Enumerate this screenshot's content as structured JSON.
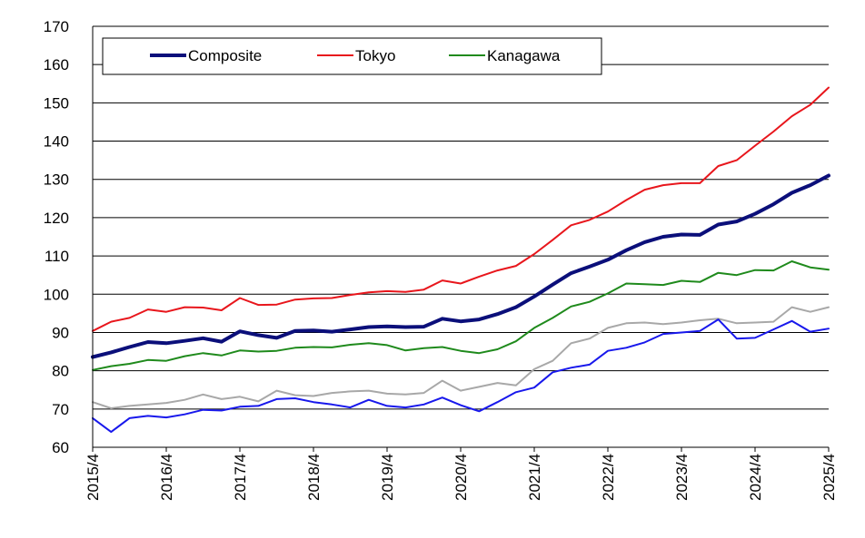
{
  "chart_data": {
    "type": "line",
    "title": "",
    "xlabel": "",
    "ylabel": "",
    "ylim": [
      60,
      170
    ],
    "yticks": [
      60,
      70,
      80,
      90,
      100,
      110,
      120,
      130,
      140,
      150,
      160,
      170
    ],
    "xlim": [
      "2015/4",
      "2025/4"
    ],
    "xtick_labels": [
      "2015/4",
      "2016/4",
      "2017/4",
      "2018/4",
      "2019/4",
      "2020/4",
      "2021/4",
      "2022/4",
      "2023/4",
      "2024/4",
      "2025/4"
    ],
    "grid": "horizontal",
    "legend_position": "top-left",
    "series": [
      {
        "name": "Composite",
        "color": "#0b0f7a",
        "points": [
          [
            "2015/4",
            83.6
          ],
          [
            "2015/7",
            84.8
          ],
          [
            "2015/10",
            86.2
          ],
          [
            "2016/1",
            87.5
          ],
          [
            "2016/4",
            87.2
          ],
          [
            "2016/7",
            87.8
          ],
          [
            "2016/10",
            88.5
          ],
          [
            "2017/1",
            87.6
          ],
          [
            "2017/4",
            90.3
          ],
          [
            "2017/7",
            89.3
          ],
          [
            "2017/10",
            88.6
          ],
          [
            "2018/1",
            90.4
          ],
          [
            "2018/4",
            90.5
          ],
          [
            "2018/7",
            90.2
          ],
          [
            "2018/10",
            90.8
          ],
          [
            "2019/1",
            91.4
          ],
          [
            "2019/4",
            91.6
          ],
          [
            "2019/7",
            91.4
          ],
          [
            "2019/10",
            91.5
          ],
          [
            "2020/1",
            93.6
          ],
          [
            "2020/4",
            92.9
          ],
          [
            "2020/7",
            93.4
          ],
          [
            "2020/10",
            94.8
          ],
          [
            "2021/1",
            96.6
          ],
          [
            "2021/4",
            99.4
          ],
          [
            "2021/7",
            102.5
          ],
          [
            "2021/10",
            105.5
          ],
          [
            "2022/1",
            107.2
          ],
          [
            "2022/4",
            109.0
          ],
          [
            "2022/7",
            111.5
          ],
          [
            "2022/10",
            113.6
          ],
          [
            "2023/1",
            115.0
          ],
          [
            "2023/4",
            115.6
          ],
          [
            "2023/7",
            115.5
          ],
          [
            "2023/10",
            118.2
          ],
          [
            "2024/1",
            119.0
          ],
          [
            "2024/4",
            121.0
          ],
          [
            "2024/7",
            123.5
          ],
          [
            "2024/10",
            126.5
          ],
          [
            "2025/1",
            128.5
          ],
          [
            "2025/4",
            131.0
          ]
        ]
      },
      {
        "name": "Tokyo",
        "color": "#e8161c",
        "points": [
          [
            "2015/4",
            90.4
          ],
          [
            "2015/7",
            92.8
          ],
          [
            "2015/10",
            93.8
          ],
          [
            "2016/1",
            96.0
          ],
          [
            "2016/4",
            95.4
          ],
          [
            "2016/7",
            96.6
          ],
          [
            "2016/10",
            96.5
          ],
          [
            "2017/1",
            95.8
          ],
          [
            "2017/4",
            99.0
          ],
          [
            "2017/7",
            97.2
          ],
          [
            "2017/10",
            97.3
          ],
          [
            "2018/1",
            98.6
          ],
          [
            "2018/4",
            98.9
          ],
          [
            "2018/7",
            99.0
          ],
          [
            "2018/10",
            99.8
          ],
          [
            "2019/1",
            100.5
          ],
          [
            "2019/4",
            100.8
          ],
          [
            "2019/7",
            100.6
          ],
          [
            "2019/10",
            101.2
          ],
          [
            "2020/1",
            103.6
          ],
          [
            "2020/4",
            102.8
          ],
          [
            "2020/7",
            104.6
          ],
          [
            "2020/10",
            106.2
          ],
          [
            "2021/1",
            107.4
          ],
          [
            "2021/4",
            110.5
          ],
          [
            "2021/7",
            114.2
          ],
          [
            "2021/10",
            118.0
          ],
          [
            "2022/1",
            119.4
          ],
          [
            "2022/4",
            121.6
          ],
          [
            "2022/7",
            124.6
          ],
          [
            "2022/10",
            127.3
          ],
          [
            "2023/1",
            128.5
          ],
          [
            "2023/4",
            129.0
          ],
          [
            "2023/7",
            129.0
          ],
          [
            "2023/10",
            133.5
          ],
          [
            "2024/1",
            135.0
          ],
          [
            "2024/4",
            138.8
          ],
          [
            "2024/7",
            142.5
          ],
          [
            "2024/10",
            146.5
          ],
          [
            "2025/1",
            149.5
          ],
          [
            "2025/4",
            154.0
          ]
        ]
      },
      {
        "name": "Kanagawa",
        "color": "#1f8a1c",
        "points": [
          [
            "2015/4",
            80.2
          ],
          [
            "2015/7",
            81.2
          ],
          [
            "2015/10",
            81.8
          ],
          [
            "2016/1",
            82.8
          ],
          [
            "2016/4",
            82.6
          ],
          [
            "2016/7",
            83.8
          ],
          [
            "2016/10",
            84.6
          ],
          [
            "2017/1",
            84.0
          ],
          [
            "2017/4",
            85.3
          ],
          [
            "2017/7",
            85.0
          ],
          [
            "2017/10",
            85.2
          ],
          [
            "2018/1",
            86.0
          ],
          [
            "2018/4",
            86.2
          ],
          [
            "2018/7",
            86.1
          ],
          [
            "2018/10",
            86.8
          ],
          [
            "2019/1",
            87.2
          ],
          [
            "2019/4",
            86.7
          ],
          [
            "2019/7",
            85.3
          ],
          [
            "2019/10",
            85.9
          ],
          [
            "2020/1",
            86.2
          ],
          [
            "2020/4",
            85.2
          ],
          [
            "2020/7",
            84.6
          ],
          [
            "2020/10",
            85.6
          ],
          [
            "2021/1",
            87.7
          ],
          [
            "2021/4",
            91.2
          ],
          [
            "2021/7",
            93.8
          ],
          [
            "2021/10",
            96.8
          ],
          [
            "2022/1",
            98.0
          ],
          [
            "2022/4",
            100.2
          ],
          [
            "2022/7",
            102.8
          ],
          [
            "2022/10",
            102.6
          ],
          [
            "2023/1",
            102.4
          ],
          [
            "2023/4",
            103.5
          ],
          [
            "2023/7",
            103.2
          ],
          [
            "2023/10",
            105.6
          ],
          [
            "2024/1",
            105.0
          ],
          [
            "2024/4",
            106.3
          ],
          [
            "2024/7",
            106.2
          ],
          [
            "2024/10",
            108.6
          ],
          [
            "2025/1",
            107.0
          ],
          [
            "2025/4",
            106.4
          ]
        ]
      },
      {
        "name": "",
        "color": "#a8a8a8",
        "points": [
          [
            "2015/4",
            71.8
          ],
          [
            "2015/7",
            70.2
          ],
          [
            "2015/10",
            70.8
          ],
          [
            "2016/1",
            71.2
          ],
          [
            "2016/4",
            71.6
          ],
          [
            "2016/7",
            72.4
          ],
          [
            "2016/10",
            73.8
          ],
          [
            "2017/1",
            72.6
          ],
          [
            "2017/4",
            73.2
          ],
          [
            "2017/7",
            72.0
          ],
          [
            "2017/10",
            74.8
          ],
          [
            "2018/1",
            73.6
          ],
          [
            "2018/4",
            73.4
          ],
          [
            "2018/7",
            74.2
          ],
          [
            "2018/10",
            74.6
          ],
          [
            "2019/1",
            74.8
          ],
          [
            "2019/4",
            74.0
          ],
          [
            "2019/7",
            73.8
          ],
          [
            "2019/10",
            74.2
          ],
          [
            "2020/1",
            77.4
          ],
          [
            "2020/4",
            74.8
          ],
          [
            "2020/7",
            75.8
          ],
          [
            "2020/10",
            76.8
          ],
          [
            "2021/1",
            76.2
          ],
          [
            "2021/4",
            80.4
          ],
          [
            "2021/7",
            82.6
          ],
          [
            "2021/10",
            87.2
          ],
          [
            "2022/1",
            88.4
          ],
          [
            "2022/4",
            91.2
          ],
          [
            "2022/7",
            92.4
          ],
          [
            "2022/10",
            92.6
          ],
          [
            "2023/1",
            92.2
          ],
          [
            "2023/4",
            92.6
          ],
          [
            "2023/7",
            93.2
          ],
          [
            "2023/10",
            93.6
          ],
          [
            "2024/1",
            92.4
          ],
          [
            "2024/4",
            92.6
          ],
          [
            "2024/7",
            92.8
          ],
          [
            "2024/10",
            96.6
          ],
          [
            "2025/1",
            95.4
          ],
          [
            "2025/4",
            96.6
          ]
        ]
      },
      {
        "name": "",
        "color": "#1818ec",
        "points": [
          [
            "2015/4",
            67.6
          ],
          [
            "2015/7",
            64.0
          ],
          [
            "2015/10",
            67.6
          ],
          [
            "2016/1",
            68.2
          ],
          [
            "2016/4",
            67.8
          ],
          [
            "2016/7",
            68.6
          ],
          [
            "2016/10",
            69.8
          ],
          [
            "2017/1",
            69.6
          ],
          [
            "2017/4",
            70.6
          ],
          [
            "2017/7",
            70.8
          ],
          [
            "2017/10",
            72.6
          ],
          [
            "2018/1",
            72.8
          ],
          [
            "2018/4",
            71.8
          ],
          [
            "2018/7",
            71.2
          ],
          [
            "2018/10",
            70.4
          ],
          [
            "2019/1",
            72.4
          ],
          [
            "2019/4",
            70.8
          ],
          [
            "2019/7",
            70.4
          ],
          [
            "2019/10",
            71.2
          ],
          [
            "2020/1",
            73.0
          ],
          [
            "2020/4",
            71.0
          ],
          [
            "2020/7",
            69.4
          ],
          [
            "2020/10",
            71.8
          ],
          [
            "2021/1",
            74.4
          ],
          [
            "2021/4",
            75.6
          ],
          [
            "2021/7",
            79.6
          ],
          [
            "2021/10",
            80.8
          ],
          [
            "2022/1",
            81.6
          ],
          [
            "2022/4",
            85.2
          ],
          [
            "2022/7",
            86.0
          ],
          [
            "2022/10",
            87.4
          ],
          [
            "2023/1",
            89.6
          ],
          [
            "2023/4",
            90.0
          ],
          [
            "2023/7",
            90.4
          ],
          [
            "2023/10",
            93.4
          ],
          [
            "2024/1",
            88.4
          ],
          [
            "2024/4",
            88.6
          ],
          [
            "2024/7",
            90.8
          ],
          [
            "2024/10",
            93.0
          ],
          [
            "2025/1",
            90.2
          ],
          [
            "2025/4",
            91.0
          ]
        ]
      }
    ]
  }
}
